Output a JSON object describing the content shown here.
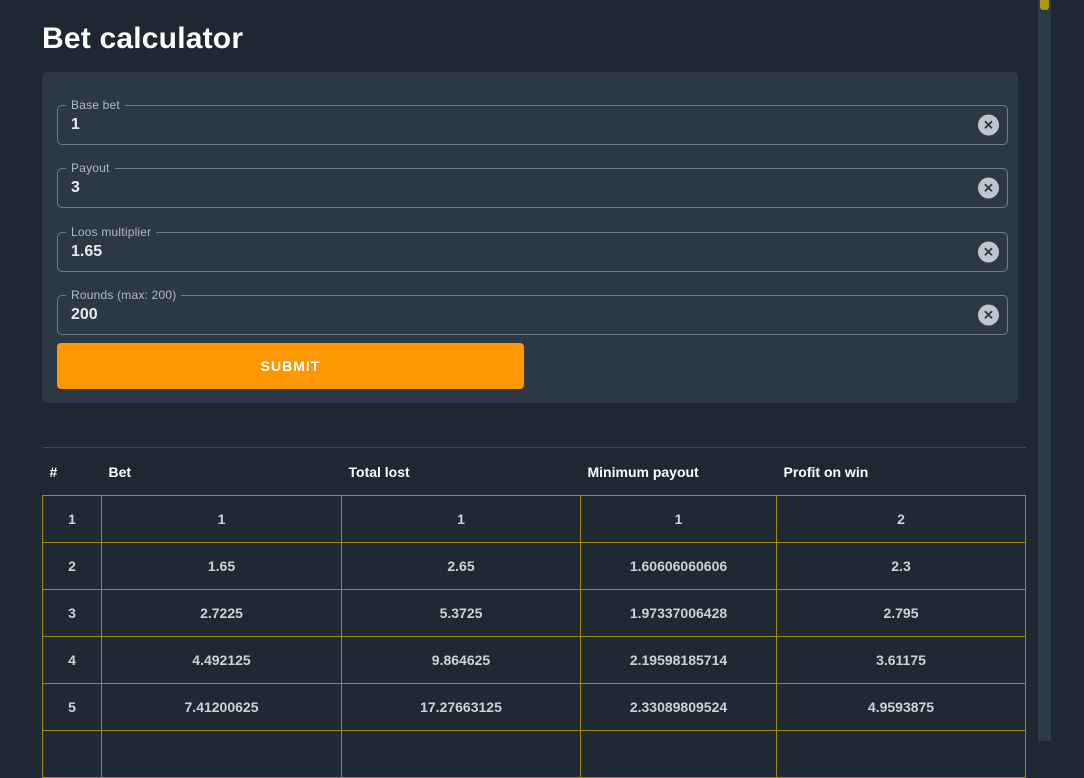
{
  "page": {
    "title": "Bet calculator"
  },
  "form": {
    "fields": [
      {
        "label": "Base bet",
        "value": "1"
      },
      {
        "label": "Payout",
        "value": "3"
      },
      {
        "label": "Loos multiplier",
        "value": "1.65"
      },
      {
        "label": "Rounds (max: 200)",
        "value": "200"
      }
    ],
    "clear_icon_glyph": "✕",
    "submit_label": "SUBMIT"
  },
  "table": {
    "columns": [
      "#",
      "Bet",
      "Total lost",
      "Minimum payout",
      "Profit on win"
    ],
    "rows": [
      [
        "1",
        "1",
        "1",
        "1",
        "2"
      ],
      [
        "2",
        "1.65",
        "2.65",
        "1.60606060606",
        "2.3"
      ],
      [
        "3",
        "2.7225",
        "5.3725",
        "1.97337006428",
        "2.795"
      ],
      [
        "4",
        "4.492125",
        "9.864625",
        "2.19598185714",
        "3.61175"
      ],
      [
        "5",
        "7.41200625",
        "17.27663125",
        "2.33089809524",
        "4.9593875"
      ],
      [
        "",
        "",
        "",
        "",
        ""
      ]
    ]
  },
  "colors": {
    "page_background": "#1e2832",
    "card_background": "#2d3845",
    "accent_orange": "#ff9800",
    "table_border_gold": "#9e8a12",
    "header_divider": "#3e4a57",
    "scrollbar_thumb": "#aa9510"
  }
}
